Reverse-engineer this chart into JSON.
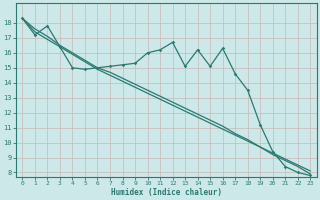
{
  "xlabel": "Humidex (Indice chaleur)",
  "x_values": [
    0,
    1,
    2,
    3,
    4,
    5,
    6,
    7,
    8,
    9,
    10,
    11,
    12,
    13,
    14,
    15,
    16,
    17,
    18,
    19,
    20,
    21,
    22,
    23
  ],
  "line_jagged": [
    18.3,
    17.2,
    17.8,
    16.4,
    15.0,
    14.9,
    15.0,
    15.1,
    15.2,
    15.3,
    16.0,
    16.2,
    16.7,
    15.1,
    16.2,
    15.1,
    16.3,
    14.6,
    13.5,
    11.2,
    9.4,
    8.4,
    8.0,
    7.8
  ],
  "line_upper": [
    18.3,
    17.4,
    16.9,
    16.4,
    15.9,
    15.4,
    14.9,
    14.5,
    14.1,
    13.7,
    13.3,
    12.9,
    12.5,
    12.1,
    11.7,
    11.3,
    10.9,
    10.5,
    10.1,
    9.7,
    9.3,
    8.9,
    8.5,
    8.1
  ],
  "line_lower": [
    18.3,
    17.6,
    17.1,
    16.5,
    16.0,
    15.5,
    15.0,
    14.7,
    14.3,
    13.9,
    13.5,
    13.1,
    12.7,
    12.3,
    11.9,
    11.5,
    11.1,
    10.6,
    10.2,
    9.7,
    9.2,
    8.8,
    8.4,
    7.9
  ],
  "color": "#2a7a72",
  "bg_color": "#cce8e8",
  "grid_color": "#c0c8c0",
  "ylim": [
    8,
    19
  ],
  "xlim": [
    -0.5,
    23.5
  ],
  "yticks": [
    8,
    9,
    10,
    11,
    12,
    13,
    14,
    15,
    16,
    17,
    18
  ],
  "xticks": [
    0,
    1,
    2,
    3,
    4,
    5,
    6,
    7,
    8,
    9,
    10,
    11,
    12,
    13,
    14,
    15,
    16,
    17,
    18,
    19,
    20,
    21,
    22,
    23
  ]
}
